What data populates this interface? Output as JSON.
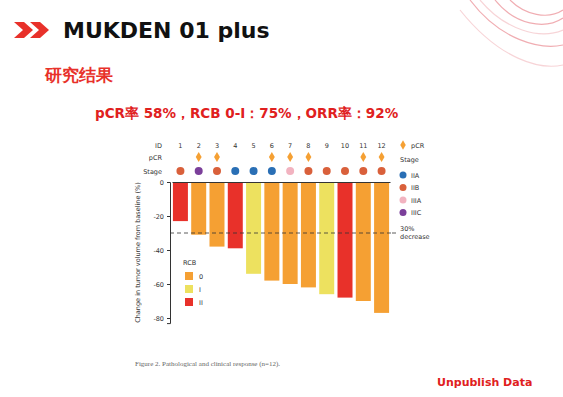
{
  "header": {
    "title": "MUKDEN 01 plus",
    "section": "研究结果",
    "subtitle": "pCR率 58%，RCB 0-I：75%，ORR率：92%",
    "footnote": "Unpublish Data"
  },
  "chart_data": {
    "type": "bar",
    "caption": "Figure 2. Pathological and clinical response (n=12).",
    "y_label": "Change in tumor volume from baseline (%)",
    "row_labels": [
      "ID",
      "pCR",
      "Stage"
    ],
    "categories": [
      "1",
      "2",
      "3",
      "4",
      "5",
      "6",
      "7",
      "8",
      "9",
      "10",
      "11",
      "12"
    ],
    "values": [
      -23,
      -31,
      -38,
      -39,
      -54,
      -58,
      -60,
      -62,
      -66,
      -68,
      -70,
      -77
    ],
    "rcb": [
      "II",
      "0",
      "0",
      "II",
      "I",
      "0",
      "0",
      "0",
      "I",
      "II",
      "0",
      "0"
    ],
    "pcr": [
      false,
      true,
      true,
      false,
      false,
      true,
      true,
      true,
      false,
      false,
      true,
      true
    ],
    "stage": [
      "IIB",
      "IIIC",
      "IIB",
      "IIA",
      "IIA",
      "IIA",
      "IIIA",
      "IIB",
      "IIB",
      "IIB",
      "IIB",
      "IIB"
    ],
    "ylim": [
      -83,
      0
    ],
    "yticks": [
      0,
      -20,
      -40,
      -60,
      -80
    ],
    "reference_line": {
      "value": -30,
      "label": [
        "30%",
        "decrease"
      ]
    },
    "pcr_legend": {
      "label": "pCR",
      "color": "#f5a033"
    },
    "stage_legend": {
      "title": "Stage",
      "items": [
        {
          "label": "IIA",
          "color": "#2a6fb5"
        },
        {
          "label": "IIB",
          "color": "#d9603b"
        },
        {
          "label": "IIIA",
          "color": "#f2b3c0"
        },
        {
          "label": "IIIC",
          "color": "#7b3f9a"
        }
      ]
    },
    "rcb_legend": {
      "title": "RCB",
      "items": [
        {
          "label": "0",
          "color": "#f5a033"
        },
        {
          "label": "I",
          "color": "#ede15f"
        },
        {
          "label": "II",
          "color": "#e8312a"
        }
      ]
    }
  }
}
